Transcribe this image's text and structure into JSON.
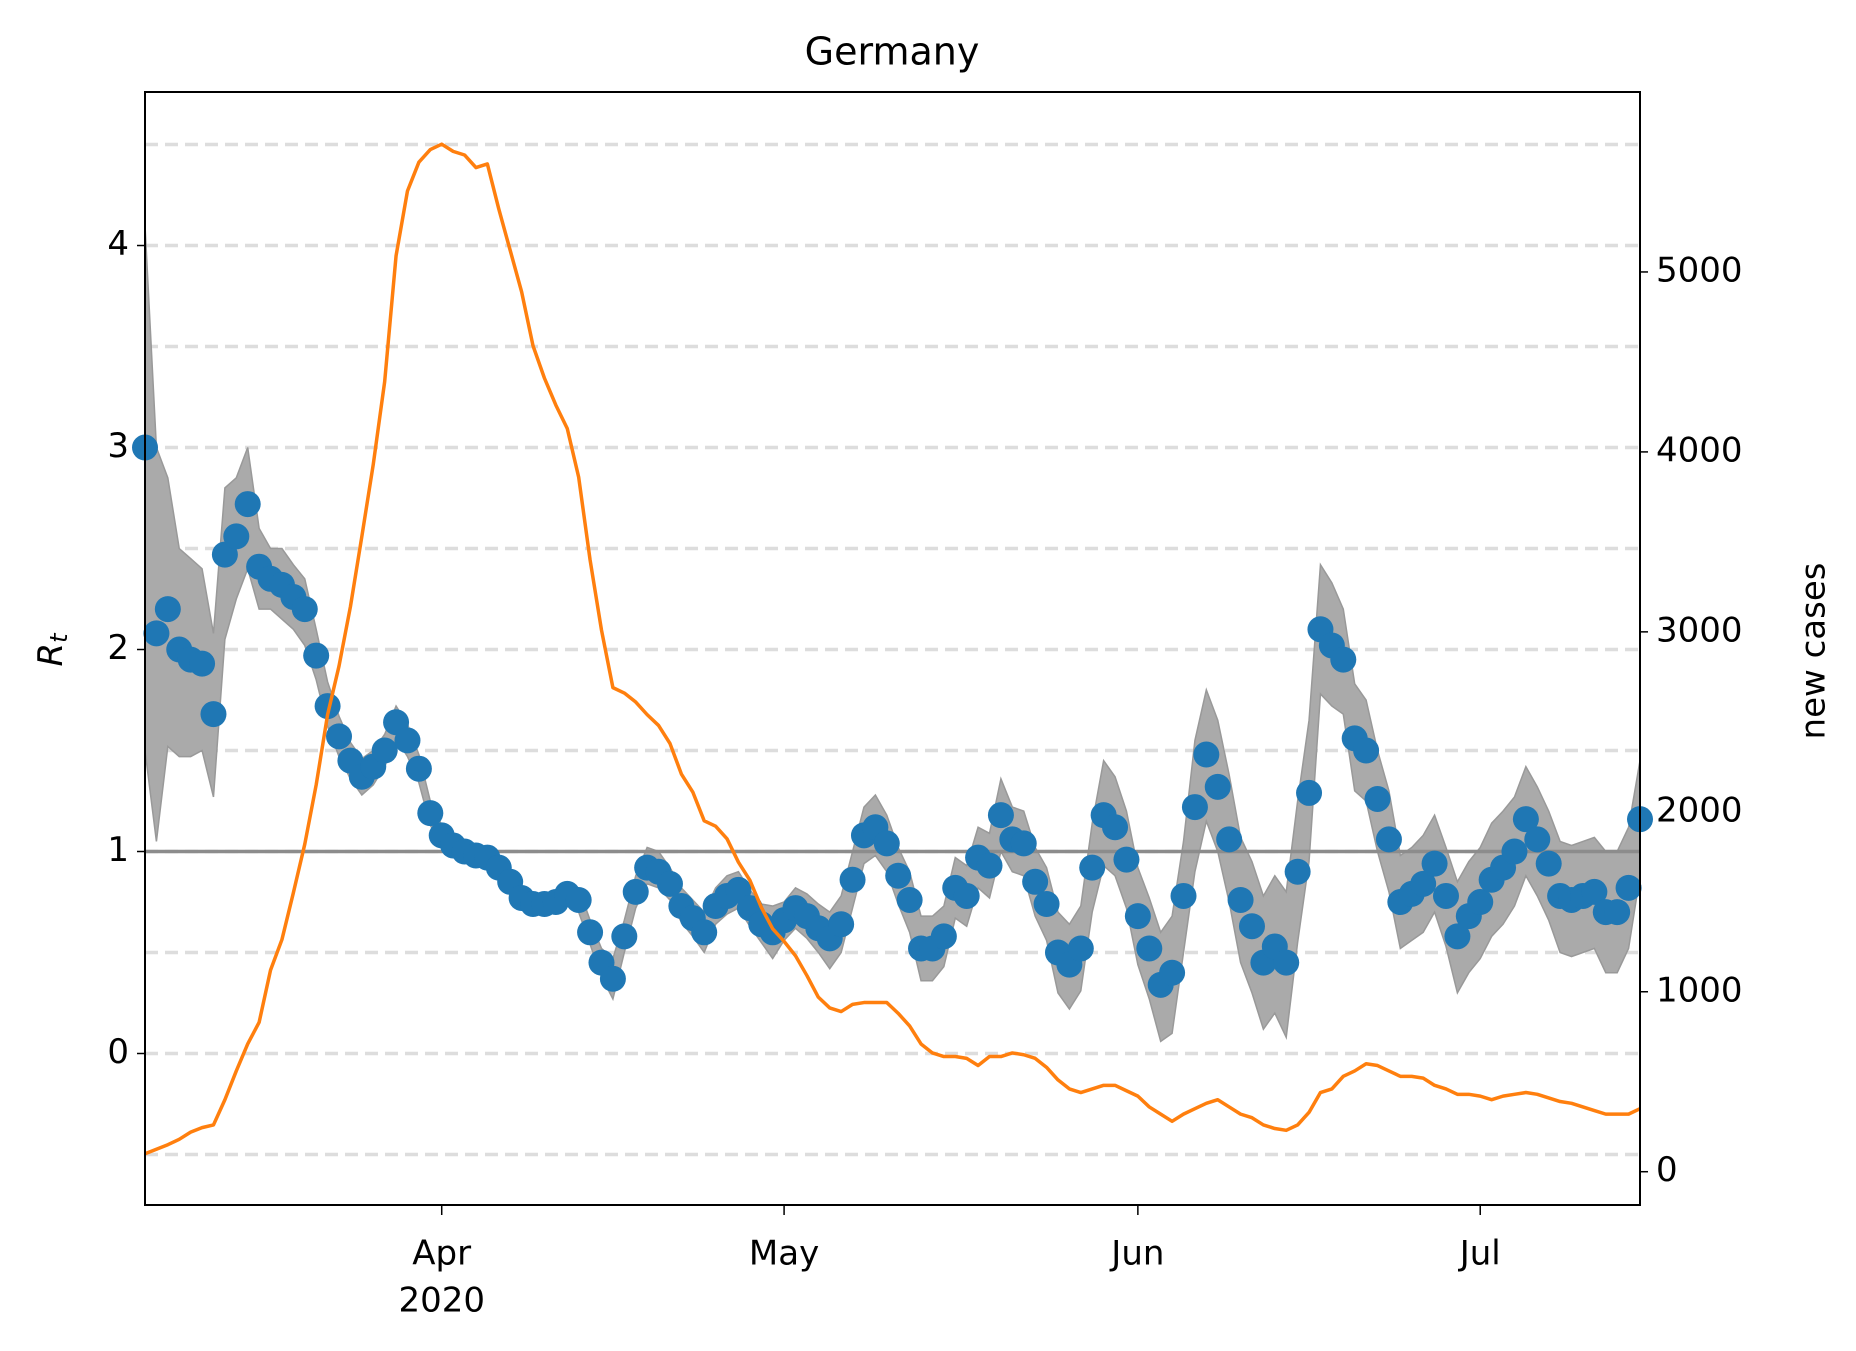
{
  "chart_data": {
    "type": "line",
    "title": "Germany",
    "ylabel": "R",
    "ylabel_subscript": "t",
    "y2label": "new cases",
    "x": [
      0,
      1,
      2,
      3,
      4,
      5,
      6,
      7,
      8,
      9,
      10,
      11,
      12,
      13,
      14,
      15,
      16,
      17,
      18,
      19,
      20,
      21,
      22,
      23,
      24,
      25,
      26,
      27,
      28,
      29,
      30,
      31,
      32,
      33,
      34,
      35,
      36,
      37,
      38,
      39,
      40,
      41,
      42,
      43,
      44,
      45,
      46,
      47,
      48,
      49,
      50,
      51,
      52,
      53,
      54,
      55,
      56,
      57,
      58,
      59,
      60,
      61,
      62,
      63,
      64,
      65,
      66,
      67,
      68,
      69,
      70,
      71,
      72,
      73,
      74,
      75,
      76,
      77,
      78,
      79,
      80,
      81,
      82,
      83,
      84,
      85,
      86,
      87,
      88,
      89,
      90,
      91,
      92,
      93,
      94,
      95,
      96,
      97,
      98,
      99,
      100,
      101,
      102,
      103,
      104,
      105,
      106,
      107,
      108,
      109,
      110,
      111,
      112,
      113,
      114,
      115,
      116,
      117,
      118,
      119,
      120,
      121,
      122,
      123,
      124,
      125,
      126,
      127,
      128,
      129,
      130,
      131
    ],
    "xlim": [
      0,
      131
    ],
    "xticks": [
      {
        "value": 26,
        "label": "Apr"
      },
      {
        "value": 56,
        "label": "May"
      },
      {
        "value": 87,
        "label": "Jun"
      },
      {
        "value": 117,
        "label": "Jul"
      }
    ],
    "xtick_year": "2020",
    "ylim": [
      -0.75,
      4.76
    ],
    "yticks": [
      0,
      1,
      2,
      3,
      4
    ],
    "ygrid": [
      -0.5,
      0,
      0.5,
      1,
      1.5,
      2,
      2.5,
      3,
      3.5,
      4,
      4.5
    ],
    "grid": true,
    "hline": 1,
    "y2lim": [
      -185,
      6000
    ],
    "y2ticks": [
      0,
      1000,
      2000,
      3000,
      4000,
      5000
    ],
    "series": [
      {
        "color": "#1f77b4",
        "band_color": "#aaaaaa",
        "values": [
          3.0,
          2.08,
          2.2,
          2.0,
          1.95,
          1.93,
          1.68,
          2.47,
          2.56,
          2.72,
          2.41,
          2.35,
          2.32,
          2.26,
          2.2,
          1.97,
          1.72,
          1.57,
          1.45,
          1.37,
          1.42,
          1.5,
          1.64,
          1.55,
          1.41,
          1.19,
          1.08,
          1.03,
          1.0,
          0.98,
          0.97,
          0.92,
          0.85,
          0.77,
          0.74,
          0.74,
          0.75,
          0.79,
          0.76,
          0.6,
          0.45,
          0.37,
          0.58,
          0.8,
          0.92,
          0.9,
          0.84,
          0.73,
          0.67,
          0.6,
          0.73,
          0.78,
          0.81,
          0.72,
          0.64,
          0.6,
          0.66,
          0.72,
          0.68,
          0.62,
          0.57,
          0.64,
          0.86,
          1.08,
          1.12,
          1.04,
          0.88,
          0.76,
          0.52,
          0.52,
          0.58,
          0.82,
          0.78,
          0.97,
          0.93,
          1.18,
          1.06,
          1.04,
          0.85,
          0.74,
          0.5,
          0.44,
          0.52,
          0.92,
          1.18,
          1.12,
          0.96,
          0.68,
          0.52,
          0.34,
          0.4,
          0.78,
          1.22,
          1.48,
          1.32,
          1.06,
          0.76,
          0.63,
          0.45,
          0.53,
          0.45,
          0.9,
          1.29,
          2.1,
          2.02,
          1.95,
          1.56,
          1.5,
          1.26,
          1.06,
          0.75,
          0.79,
          0.84,
          0.94,
          0.78,
          0.58,
          0.68,
          0.75,
          0.86,
          0.92,
          1.0,
          1.16,
          1.06,
          0.94,
          0.78,
          0.76,
          0.78,
          0.8,
          0.7,
          0.7,
          0.82,
          1.16
        ],
        "lower": [
          1.5,
          1.05,
          1.52,
          1.47,
          1.47,
          1.5,
          1.27,
          2.05,
          2.25,
          2.4,
          2.2,
          2.2,
          2.15,
          2.1,
          2.02,
          1.85,
          1.62,
          1.47,
          1.36,
          1.28,
          1.33,
          1.42,
          1.56,
          1.47,
          1.34,
          1.13,
          1.03,
          0.98,
          0.95,
          0.93,
          0.92,
          0.87,
          0.8,
          0.72,
          0.69,
          0.69,
          0.7,
          0.74,
          0.7,
          0.54,
          0.38,
          0.27,
          0.5,
          0.72,
          0.84,
          0.82,
          0.76,
          0.65,
          0.58,
          0.5,
          0.64,
          0.69,
          0.72,
          0.63,
          0.55,
          0.47,
          0.56,
          0.62,
          0.57,
          0.5,
          0.42,
          0.5,
          0.72,
          0.94,
          0.98,
          0.9,
          0.74,
          0.6,
          0.36,
          0.36,
          0.43,
          0.67,
          0.63,
          0.82,
          0.77,
          1.0,
          0.9,
          0.88,
          0.68,
          0.56,
          0.3,
          0.22,
          0.31,
          0.7,
          0.93,
          0.88,
          0.72,
          0.44,
          0.27,
          0.06,
          0.1,
          0.5,
          0.9,
          1.15,
          1.0,
          0.75,
          0.45,
          0.3,
          0.12,
          0.2,
          0.08,
          0.55,
          0.95,
          1.78,
          1.72,
          1.68,
          1.3,
          1.25,
          1.0,
          0.8,
          0.52,
          0.56,
          0.6,
          0.7,
          0.53,
          0.3,
          0.4,
          0.47,
          0.58,
          0.64,
          0.73,
          0.88,
          0.78,
          0.66,
          0.5,
          0.48,
          0.5,
          0.52,
          0.4,
          0.4,
          0.52,
          0.88
        ],
        "upper": [
          4.1,
          3.0,
          2.85,
          2.5,
          2.45,
          2.4,
          2.08,
          2.8,
          2.85,
          3.0,
          2.6,
          2.5,
          2.5,
          2.42,
          2.35,
          2.1,
          1.84,
          1.67,
          1.54,
          1.46,
          1.5,
          1.58,
          1.72,
          1.63,
          1.48,
          1.25,
          1.13,
          1.08,
          1.05,
          1.03,
          1.02,
          0.97,
          0.9,
          0.82,
          0.79,
          0.79,
          0.8,
          0.84,
          0.82,
          0.66,
          0.52,
          0.47,
          0.66,
          0.88,
          1.02,
          1.0,
          0.92,
          0.82,
          0.76,
          0.7,
          0.82,
          0.88,
          0.9,
          0.81,
          0.74,
          0.73,
          0.75,
          0.82,
          0.79,
          0.74,
          0.7,
          0.78,
          1.0,
          1.22,
          1.28,
          1.18,
          1.02,
          0.9,
          0.68,
          0.68,
          0.73,
          0.97,
          0.93,
          1.12,
          1.09,
          1.36,
          1.22,
          1.2,
          1.02,
          0.92,
          0.7,
          0.64,
          0.73,
          1.14,
          1.45,
          1.37,
          1.2,
          0.92,
          0.77,
          0.6,
          0.68,
          1.05,
          1.55,
          1.8,
          1.65,
          1.38,
          1.07,
          0.95,
          0.78,
          0.88,
          0.8,
          1.25,
          1.65,
          2.42,
          2.33,
          2.2,
          1.83,
          1.75,
          1.5,
          1.3,
          0.98,
          1.02,
          1.08,
          1.18,
          1.02,
          0.85,
          0.95,
          1.02,
          1.14,
          1.2,
          1.27,
          1.42,
          1.32,
          1.2,
          1.05,
          1.03,
          1.05,
          1.07,
          1.0,
          1.0,
          1.12,
          1.45
        ]
      },
      {
        "color": "#ff7f0e",
        "axis": "y2",
        "values": [
          100,
          125,
          150,
          180,
          220,
          245,
          260,
          400,
          560,
          710,
          830,
          1120,
          1290,
          1550,
          1820,
          2150,
          2540,
          2810,
          3140,
          3530,
          3930,
          4390,
          5090,
          5450,
          5610,
          5680,
          5710,
          5670,
          5650,
          5580,
          5600,
          5350,
          5120,
          4890,
          4590,
          4410,
          4260,
          4130,
          3860,
          3400,
          3010,
          2690,
          2660,
          2610,
          2540,
          2480,
          2380,
          2210,
          2110,
          1950,
          1920,
          1850,
          1720,
          1620,
          1470,
          1350,
          1280,
          1200,
          1090,
          970,
          910,
          890,
          930,
          940,
          940,
          940,
          880,
          810,
          710,
          660,
          640,
          640,
          630,
          590,
          640,
          640,
          660,
          650,
          630,
          580,
          510,
          460,
          440,
          460,
          480,
          480,
          450,
          420,
          360,
          320,
          280,
          320,
          350,
          380,
          400,
          360,
          320,
          300,
          260,
          240,
          230,
          260,
          330,
          440,
          460,
          530,
          560,
          600,
          590,
          560,
          530,
          530,
          520,
          480,
          460,
          430,
          430,
          420,
          400,
          420,
          430,
          440,
          430,
          410,
          390,
          380,
          360,
          340,
          320,
          320,
          320,
          350
        ]
      }
    ]
  }
}
